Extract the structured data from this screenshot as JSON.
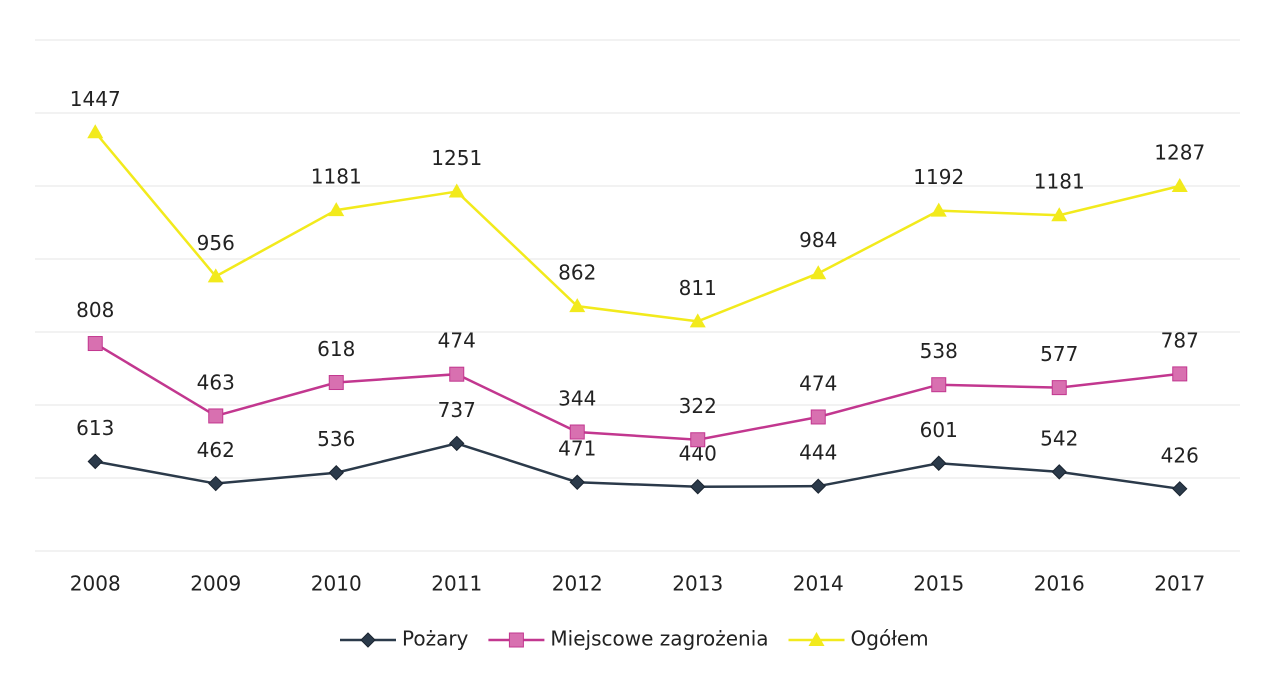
{
  "chart_data": {
    "type": "line",
    "stacked": true,
    "categories": [
      "2008",
      "2009",
      "2010",
      "2011",
      "2012",
      "2013",
      "2014",
      "2015",
      "2016",
      "2017"
    ],
    "series": [
      {
        "name": "Pożary",
        "color": "#2b3a4a",
        "marker": "diamond",
        "values": [
          613,
          462,
          536,
          737,
          471,
          440,
          444,
          601,
          542,
          426
        ]
      },
      {
        "name": "Miejscowe zagrożenia",
        "color": "#c2378f",
        "marker": "square",
        "values": [
          808,
          463,
          618,
          474,
          344,
          322,
          474,
          538,
          577,
          787
        ]
      },
      {
        "name": "Ogółem",
        "color": "#f2ea1c",
        "marker": "triangle",
        "values": [
          1447,
          956,
          1181,
          1251,
          862,
          811,
          984,
          1192,
          1181,
          1287
        ]
      }
    ],
    "ylim": [
      0,
      3500
    ],
    "yticks": [
      0,
      500,
      1000,
      1500,
      2000,
      2500,
      3000,
      3500
    ],
    "grid": true,
    "legend": "bottom"
  }
}
